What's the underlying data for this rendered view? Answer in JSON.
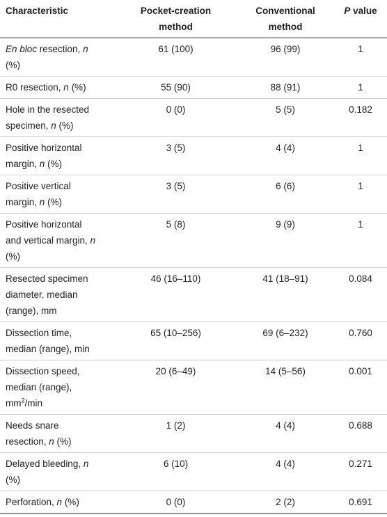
{
  "table": {
    "header": [
      [
        {
          "t": "Characteristic"
        }
      ],
      [
        {
          "t": "Pocket-creation method"
        }
      ],
      [
        {
          "t": "Conventional method"
        }
      ],
      [
        {
          "t": "P",
          "i": true
        },
        {
          "t": " value"
        }
      ]
    ],
    "rows": [
      [
        [
          {
            "t": "En bloc",
            "i": true
          },
          {
            "t": " resection, "
          },
          {
            "t": "n",
            "i": true
          },
          {
            "t": " (%)"
          }
        ],
        "61 (100)",
        "96 (99)",
        "1"
      ],
      [
        [
          {
            "t": "R0 resection, "
          },
          {
            "t": "n",
            "i": true
          },
          {
            "t": " (%)"
          }
        ],
        "55 (90)",
        "88 (91)",
        "1"
      ],
      [
        [
          {
            "t": "Hole in the resected specimen, "
          },
          {
            "t": "n",
            "i": true
          },
          {
            "t": " (%)"
          }
        ],
        "0 (0)",
        "5 (5)",
        "0.182"
      ],
      [
        [
          {
            "t": "Positive horizontal margin, "
          },
          {
            "t": "n",
            "i": true
          },
          {
            "t": " (%)"
          }
        ],
        "3 (5)",
        "4 (4)",
        "1"
      ],
      [
        [
          {
            "t": "Positive vertical margin, "
          },
          {
            "t": "n",
            "i": true
          },
          {
            "t": " (%)"
          }
        ],
        "3 (5)",
        "6 (6)",
        "1"
      ],
      [
        [
          {
            "t": "Positive horizontal and vertical margin, "
          },
          {
            "t": "n",
            "i": true
          },
          {
            "t": " (%)"
          }
        ],
        "5 (8)",
        "9 (9)",
        "1"
      ],
      [
        [
          {
            "t": "Resected specimen diameter, median (range), mm"
          }
        ],
        "46 (16–110)",
        "41 (18–91)",
        "0.084"
      ],
      [
        [
          {
            "t": "Dissection time, median (range), min"
          }
        ],
        "65 (10–256)",
        "69 (6–232)",
        "0.760"
      ],
      [
        [
          {
            "t": "Dissection speed, median (range), mm"
          },
          {
            "t": "2",
            "sup": true
          },
          {
            "t": "/min"
          }
        ],
        "20 (6–49)",
        "14 (5–56)",
        "0.001"
      ],
      [
        [
          {
            "t": "Needs snare resection, "
          },
          {
            "t": "n",
            "i": true
          },
          {
            "t": " (%)"
          }
        ],
        "1 (2)",
        "4 (4)",
        "0.688"
      ],
      [
        [
          {
            "t": "Delayed bleeding, "
          },
          {
            "t": "n",
            "i": true
          },
          {
            "t": " (%)"
          }
        ],
        "6 (10)",
        "4 (4)",
        "0.271"
      ],
      [
        [
          {
            "t": "Perforation, "
          },
          {
            "t": "n",
            "i": true
          },
          {
            "t": " (%)"
          }
        ],
        "0 (0)",
        "2 (2)",
        "0.691"
      ]
    ]
  }
}
